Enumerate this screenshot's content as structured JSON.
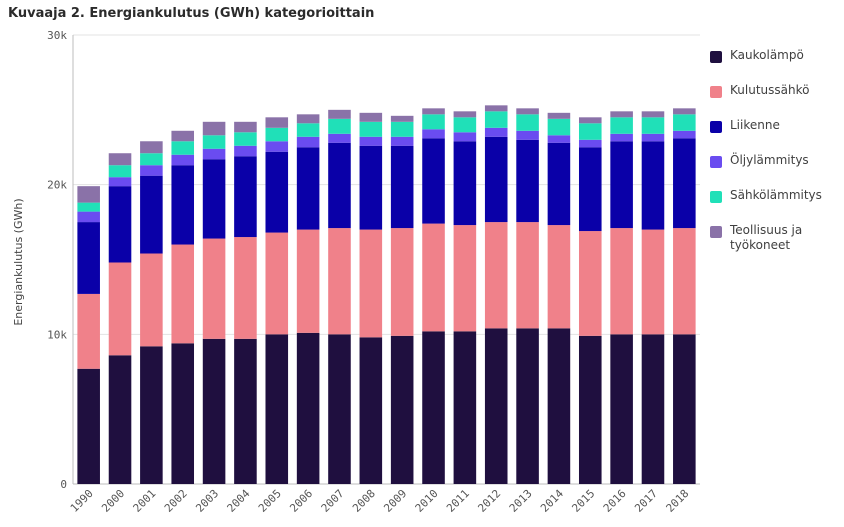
{
  "title": "Kuvaaja 2. Energiankulutus (GWh) kategorioittain",
  "chart_data": {
    "type": "bar",
    "stacked": true,
    "ylabel": "Energiankulutus (GWh)",
    "xlabel": "",
    "ylim": [
      0,
      30000
    ],
    "yticks": [
      0,
      10000,
      20000,
      30000
    ],
    "ytick_labels": [
      "0",
      "10k",
      "20k",
      "30k"
    ],
    "grid": true,
    "legend_position": "right",
    "categories": [
      "1990",
      "2000",
      "2001",
      "2002",
      "2003",
      "2004",
      "2005",
      "2006",
      "2007",
      "2008",
      "2009",
      "2010",
      "2011",
      "2012",
      "2013",
      "2014",
      "2015",
      "2016",
      "2017",
      "2018"
    ],
    "series": [
      {
        "name": "Kaukolämpö",
        "color": "#1f0f3f",
        "values": [
          7700,
          8600,
          9200,
          9400,
          9700,
          9700,
          10000,
          10100,
          10000,
          9800,
          9900,
          10200,
          10200,
          10400,
          10400,
          10400,
          9900,
          10000,
          10000,
          10000
        ]
      },
      {
        "name": "Kulutussähkö",
        "color": "#f0818a",
        "values": [
          5000,
          6200,
          6200,
          6600,
          6700,
          6800,
          6800,
          6900,
          7100,
          7200,
          7200,
          7200,
          7100,
          7100,
          7100,
          6900,
          7000,
          7100,
          7000,
          7100
        ]
      },
      {
        "name": "Liikenne",
        "color": "#0a00a8",
        "values": [
          4800,
          5100,
          5200,
          5300,
          5300,
          5400,
          5400,
          5500,
          5700,
          5600,
          5500,
          5700,
          5600,
          5700,
          5500,
          5500,
          5600,
          5800,
          5900,
          6000
        ]
      },
      {
        "name": "Öljylämmitys",
        "color": "#6a4cf0",
        "values": [
          700,
          600,
          700,
          700,
          700,
          700,
          700,
          700,
          600,
          600,
          600,
          600,
          600,
          600,
          600,
          500,
          500,
          500,
          500,
          500
        ]
      },
      {
        "name": "Sähkölämmitys",
        "color": "#20e0b8",
        "values": [
          600,
          800,
          800,
          900,
          900,
          900,
          900,
          900,
          1000,
          1000,
          1000,
          1000,
          1000,
          1100,
          1100,
          1100,
          1100,
          1100,
          1100,
          1100
        ]
      },
      {
        "name": "Teollisuus ja työkoneet",
        "color": "#8a72a8",
        "values": [
          1100,
          800,
          800,
          700,
          900,
          700,
          700,
          600,
          600,
          600,
          400,
          400,
          400,
          400,
          400,
          400,
          400,
          400,
          400,
          400
        ]
      }
    ]
  }
}
